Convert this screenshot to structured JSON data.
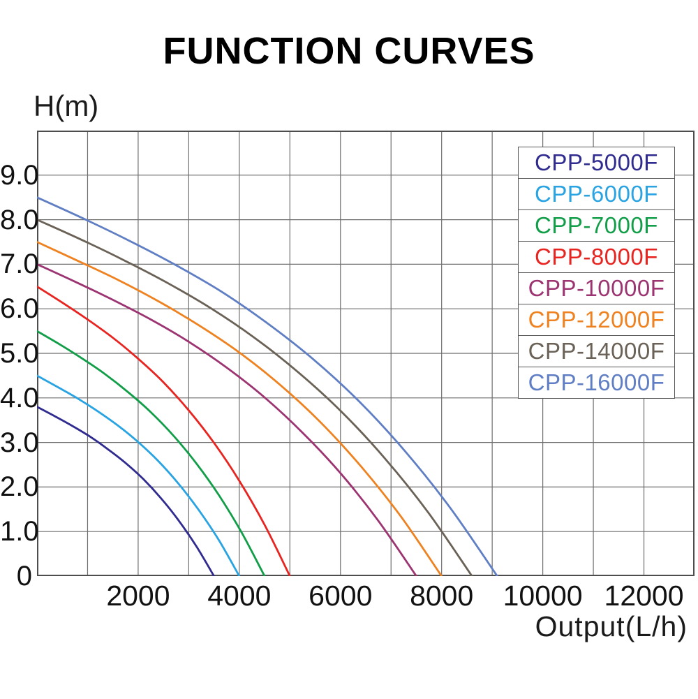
{
  "title": "FUNCTION CURVES",
  "y_axis_label": "H(m)",
  "x_axis_label": "Output(L/h)",
  "axes": {
    "y_ticks": [
      {
        "label": "9.0",
        "value": 9
      },
      {
        "label": "8.0",
        "value": 8
      },
      {
        "label": "7.0",
        "value": 7
      },
      {
        "label": "6.0",
        "value": 6
      },
      {
        "label": "5.0",
        "value": 5
      },
      {
        "label": "4.0",
        "value": 4
      },
      {
        "label": "3.0",
        "value": 3
      },
      {
        "label": "2.0",
        "value": 2
      },
      {
        "label": "1.0",
        "value": 1
      },
      {
        "label": "0",
        "value": 0
      }
    ],
    "x_ticks": [
      {
        "label": "2000",
        "value": 2000
      },
      {
        "label": "4000",
        "value": 4000
      },
      {
        "label": "6000",
        "value": 6000
      },
      {
        "label": "8000",
        "value": 8000
      },
      {
        "label": "10000",
        "value": 10000
      },
      {
        "label": "12000",
        "value": 12000
      }
    ]
  },
  "chart_data": {
    "type": "line",
    "title": "FUNCTION CURVES",
    "xlabel": "Output(L/h)",
    "ylabel": "H(m)",
    "xlim": [
      0,
      13000
    ],
    "ylim": [
      0,
      10
    ],
    "grid": true,
    "grid_x_step": 1000,
    "grid_y_step": 1,
    "legend_position": "top-right",
    "grid_color": "#6e6e6e",
    "border_color": "#4d4d4d",
    "series": [
      {
        "name": "CPP-5000F",
        "color": "#2f2b8f",
        "max_head_m": 3.8,
        "max_flow_lh": 3500,
        "points": [
          [
            0,
            3.8
          ],
          [
            350,
            3.59
          ],
          [
            700,
            3.37
          ],
          [
            1050,
            3.13
          ],
          [
            1400,
            2.85
          ],
          [
            1750,
            2.54
          ],
          [
            2100,
            2.18
          ],
          [
            2450,
            1.75
          ],
          [
            2800,
            1.25
          ],
          [
            3150,
            0.67
          ],
          [
            3500,
            0
          ]
        ]
      },
      {
        "name": "CPP-6000F",
        "color": "#29a3e2",
        "max_head_m": 4.5,
        "max_flow_lh": 4000,
        "points": [
          [
            0,
            4.5
          ],
          [
            400,
            4.25
          ],
          [
            800,
            3.99
          ],
          [
            1200,
            3.7
          ],
          [
            1600,
            3.38
          ],
          [
            2000,
            3.01
          ],
          [
            2400,
            2.58
          ],
          [
            2800,
            2.07
          ],
          [
            3200,
            1.48
          ],
          [
            3600,
            0.8
          ],
          [
            4000,
            0
          ]
        ]
      },
      {
        "name": "CPP-7000F",
        "color": "#129e49",
        "max_head_m": 5.5,
        "max_flow_lh": 4500,
        "points": [
          [
            0,
            5.5
          ],
          [
            450,
            5.2
          ],
          [
            900,
            4.88
          ],
          [
            1350,
            4.53
          ],
          [
            1800,
            4.13
          ],
          [
            2250,
            3.68
          ],
          [
            2700,
            3.15
          ],
          [
            3150,
            2.53
          ],
          [
            3600,
            1.81
          ],
          [
            4050,
            0.97
          ],
          [
            4500,
            0
          ]
        ]
      },
      {
        "name": "CPP-8000F",
        "color": "#e82420",
        "max_head_m": 6.5,
        "max_flow_lh": 5000,
        "points": [
          [
            0,
            6.5
          ],
          [
            500,
            6.14
          ],
          [
            1000,
            5.76
          ],
          [
            1500,
            5.35
          ],
          [
            2000,
            4.88
          ],
          [
            2500,
            4.35
          ],
          [
            3000,
            3.72
          ],
          [
            3500,
            2.99
          ],
          [
            4000,
            2.14
          ],
          [
            4500,
            1.15
          ],
          [
            5000,
            0
          ]
        ]
      },
      {
        "name": "CPP-10000F",
        "color": "#9c3472",
        "max_head_m": 7.0,
        "max_flow_lh": 7500,
        "points": [
          [
            0,
            7
          ],
          [
            750,
            6.61
          ],
          [
            1500,
            6.2
          ],
          [
            2250,
            5.76
          ],
          [
            3000,
            5.26
          ],
          [
            3750,
            4.68
          ],
          [
            4500,
            4.01
          ],
          [
            5250,
            3.22
          ],
          [
            6000,
            2.31
          ],
          [
            6750,
            1.24
          ],
          [
            7500,
            0
          ]
        ]
      },
      {
        "name": "CPP-12000F",
        "color": "#ef8220",
        "max_head_m": 7.5,
        "max_flow_lh": 8000,
        "points": [
          [
            0,
            7.5
          ],
          [
            800,
            7.08
          ],
          [
            1600,
            6.65
          ],
          [
            2400,
            6.17
          ],
          [
            3200,
            5.63
          ],
          [
            4000,
            5.02
          ],
          [
            4800,
            4.3
          ],
          [
            5600,
            3.46
          ],
          [
            6400,
            2.47
          ],
          [
            7200,
            1.33
          ],
          [
            8000,
            0
          ]
        ]
      },
      {
        "name": "CPP-14000F",
        "color": "#6a6257",
        "max_head_m": 8.0,
        "max_flow_lh": 8600,
        "points": [
          [
            0,
            8
          ],
          [
            860,
            7.56
          ],
          [
            1720,
            7.09
          ],
          [
            2580,
            6.58
          ],
          [
            3440,
            6.01
          ],
          [
            4300,
            5.35
          ],
          [
            5160,
            4.58
          ],
          [
            6020,
            3.69
          ],
          [
            6880,
            2.64
          ],
          [
            7740,
            1.42
          ],
          [
            8600,
            0
          ]
        ]
      },
      {
        "name": "CPP-16000F",
        "color": "#5f7ec4",
        "max_head_m": 8.5,
        "max_flow_lh": 9100,
        "points": [
          [
            0,
            8.5
          ],
          [
            910,
            8.03
          ],
          [
            1820,
            7.53
          ],
          [
            2730,
            6.99
          ],
          [
            3640,
            6.39
          ],
          [
            4550,
            5.68
          ],
          [
            5460,
            4.87
          ],
          [
            6370,
            3.92
          ],
          [
            7280,
            2.8
          ],
          [
            8190,
            1.5
          ],
          [
            9100,
            0
          ]
        ]
      }
    ]
  }
}
